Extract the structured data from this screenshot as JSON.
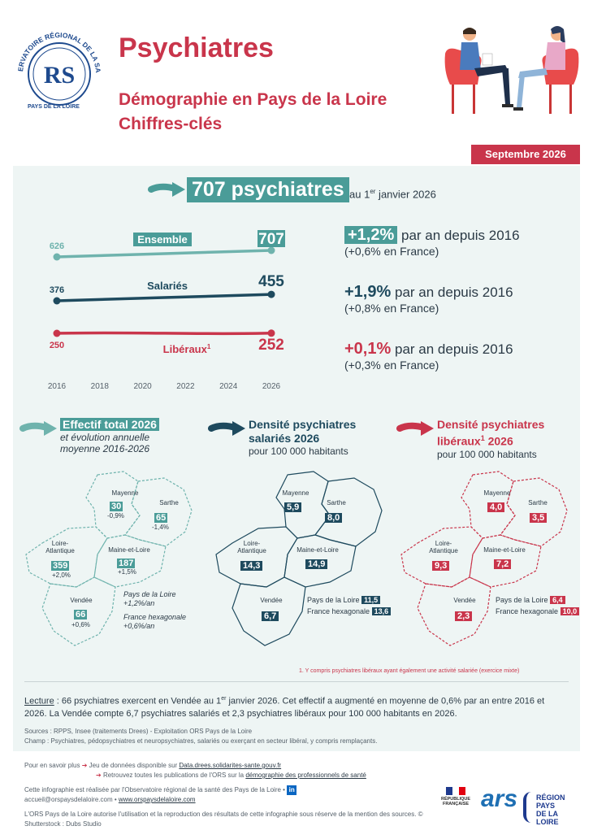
{
  "header": {
    "logo_text": "OBSERVATOIRE RÉGIONAL DE LA SANTÉ",
    "logo_bottom": "PAYS DE LA LOIRE",
    "title": "Psychiatres",
    "subtitle_1": "Démographie en Pays de la Loire",
    "subtitle_2": "Chiffres-clés",
    "date": "Septembre 2026"
  },
  "headline": {
    "value": "707 psychiatres",
    "after_prefix": "au 1",
    "after_sup": "er",
    "after_suffix": " janvier 2026"
  },
  "chart_data": {
    "type": "line",
    "x": [
      2016,
      2026
    ],
    "x_ticks": [
      "2016",
      "2018",
      "2020",
      "2022",
      "2024",
      "2026"
    ],
    "series": [
      {
        "name": "Ensemble",
        "values": [
          626,
          707
        ],
        "color": "#6fb3ad"
      },
      {
        "name": "Salariés",
        "values": [
          376,
          455
        ],
        "color": "#1e4a5e"
      },
      {
        "name": "Libéraux",
        "values": [
          250,
          252
        ],
        "color": "#c9354b"
      }
    ],
    "start_labels": [
      "626",
      "376",
      "250"
    ],
    "end_labels": [
      "707",
      "455",
      "252"
    ],
    "liberaux_sup": "1"
  },
  "stats": [
    {
      "value": "+1,2%",
      "text": " par an depuis 2016",
      "sub": "(+0,6% en France)",
      "color": "#4a9c98",
      "boxed": true
    },
    {
      "value": "+1,9%",
      "text": " par an depuis 2016",
      "sub": "(+0,8% en France)",
      "color": "#1e4a5e",
      "boxed": false
    },
    {
      "value": "+0,1%",
      "text": " par an depuis 2016",
      "sub": "(+0,3% en France)",
      "color": "#c9354b",
      "boxed": false
    }
  ],
  "maps": {
    "total": {
      "title": "Effectif total 2026",
      "sub_1": "et évolution annuelle",
      "sub_2": "moyenne 2016-2026",
      "depts": {
        "mayenne": {
          "name": "Mayenne",
          "value": "30",
          "evo": "-0,9%"
        },
        "sarthe": {
          "name": "Sarthe",
          "value": "65",
          "evo": "-1,4%"
        },
        "loire_atl": {
          "name_1": "Loire-",
          "name_2": "Atlantique",
          "value": "359",
          "evo": "+2,0%"
        },
        "maine_loire": {
          "name": "Maine-et-Loire",
          "value": "187",
          "evo": "+1,5%"
        },
        "vendee": {
          "name": "Vendée",
          "value": "66",
          "evo": "+0,6%"
        }
      },
      "region_label": "Pays de la Loire",
      "region_evo": "+1,2%/an",
      "france_label": "France hexagonale",
      "france_evo": "+0,6%/an"
    },
    "salaries": {
      "title_1": "Densité psychiatres",
      "title_2": "salariés 2026",
      "sub": "pour 100 000 habitants",
      "depts": {
        "mayenne": {
          "name": "Mayenne",
          "value": "5,9"
        },
        "sarthe": {
          "name": "Sarthe",
          "value": "8,0"
        },
        "loire_atl": {
          "name_1": "Loire-",
          "name_2": "Atlantique",
          "value": "14,3"
        },
        "maine_loire": {
          "name": "Maine-et-Loire",
          "value": "14,9"
        },
        "vendee": {
          "name": "Vendée",
          "value": "6,7"
        }
      },
      "region_label": "Pays de la Loire",
      "region_value": "11,5",
      "france_label": "France hexagonale",
      "france_value": "13,6"
    },
    "liberaux": {
      "title_1": "Densité psychiatres",
      "title_2a": "libéraux",
      "title_sup": "1",
      "title_2b": " 2026",
      "sub": "pour 100 000 habitants",
      "depts": {
        "mayenne": {
          "name": "Mayenne",
          "value": "4,0"
        },
        "sarthe": {
          "name": "Sarthe",
          "value": "3,5"
        },
        "loire_atl": {
          "name_1": "Loire-",
          "name_2": "Atlantique",
          "value": "9,3"
        },
        "maine_loire": {
          "name": "Maine-et-Loire",
          "value": "7,2"
        },
        "vendee": {
          "name": "Vendée",
          "value": "2,3"
        }
      },
      "region_label": "Pays de la Loire",
      "region_value": "6,4",
      "france_label": "France hexagonale",
      "france_value": "10,0"
    }
  },
  "footnote": "1. Y compris psychiatres libéraux ayant également une activité salariée (exercice mixte)",
  "lecture": {
    "label": "Lecture",
    "text_1": " : 66 psychiatres exercent en Vendée au 1",
    "sup": "er",
    "text_2": " janvier 2026. Cet effectif a augmenté en moyenne de 0,6% par an entre 2016 et 2026. La Vendée compte 6,7 psychiatres salariés et 2,3 psychiatres libéraux pour 100 000 habitants en 2026."
  },
  "sources": {
    "line_1": "Sources : RPPS, Insee (traitements Drees) - Exploitation ORS Pays de la Loire",
    "line_2": "Champ : Psychiatres, pédopsychiatres et neuropsychiatres, salariés ou exerçant en secteur libéral, y compris remplaçants."
  },
  "footer": {
    "more_label": "Pour en savoir plus",
    "link_1_prefix": "Jeu de données disponible sur ",
    "link_1": "Data.drees.solidarites-sante.gouv.fr",
    "link_2_prefix": "Retrouvez toutes les publications de l'ORS sur la ",
    "link_2": "démographie des professionnels de santé",
    "made_by": "Cette infographie est réalisée par l'Observatoire régional de la santé des Pays de la Loire •",
    "email": "accueil@orspaysdelaloire.com",
    "website": "www.orspaysdelaloire.com",
    "rights": "L'ORS Pays de la Loire autorise l'utilisation et la reproduction des résultats de cette infographie sous réserve de la mention des sources. © Shutterstock : Dubs Studio",
    "rf_text": "RÉPUBLIQUE FRANÇAISE",
    "ars_text": "ars",
    "region_1": "RÉGION",
    "region_2": "PAYS",
    "region_3": "DE LA",
    "region_4": "LOIRE"
  }
}
